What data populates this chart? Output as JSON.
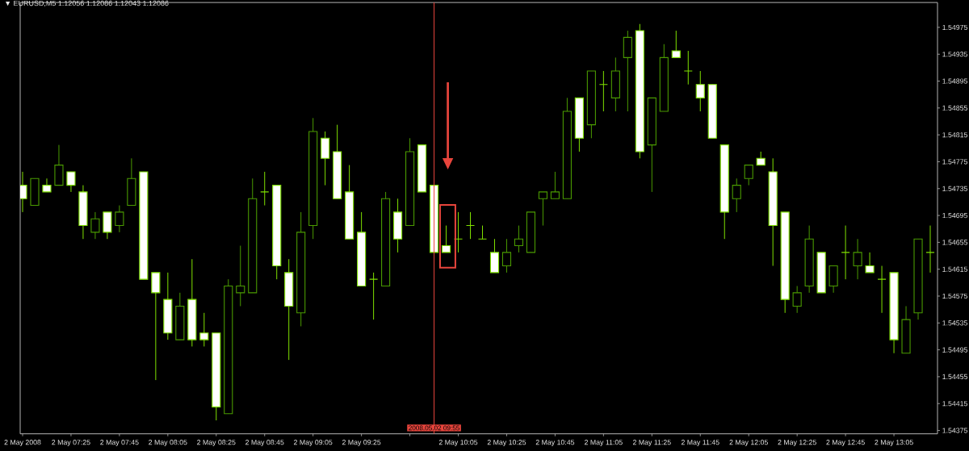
{
  "chart_data": {
    "type": "candlestick",
    "title": "▼ EURUSD,M5 1.12056 1.12086 1.12043 1.12086",
    "x": [
      "2008-05-02T07:05",
      "2008-05-02T07:10",
      "2008-05-02T07:15",
      "2008-05-02T07:20",
      "2008-05-02T07:25",
      "2008-05-02T07:30",
      "2008-05-02T07:35",
      "2008-05-02T07:40",
      "2008-05-02T07:45",
      "2008-05-02T07:50",
      "2008-05-02T07:55",
      "2008-05-02T08:00",
      "2008-05-02T08:05",
      "2008-05-02T08:10",
      "2008-05-02T08:15",
      "2008-05-02T08:20",
      "2008-05-02T08:25",
      "2008-05-02T08:30",
      "2008-05-02T08:35",
      "2008-05-02T08:40",
      "2008-05-02T08:45",
      "2008-05-02T08:50",
      "2008-05-02T08:55",
      "2008-05-02T09:00",
      "2008-05-02T09:05",
      "2008-05-02T09:10",
      "2008-05-02T09:15",
      "2008-05-02T09:20",
      "2008-05-02T09:25",
      "2008-05-02T09:30",
      "2008-05-02T09:35",
      "2008-05-02T09:40",
      "2008-05-02T09:45",
      "2008-05-02T09:50",
      "2008-05-02T09:55",
      "2008-05-02T10:00",
      "2008-05-02T10:05",
      "2008-05-02T10:10",
      "2008-05-02T10:15",
      "2008-05-02T10:20",
      "2008-05-02T10:25",
      "2008-05-02T10:30",
      "2008-05-02T10:35",
      "2008-05-02T10:40",
      "2008-05-02T10:45",
      "2008-05-02T10:50",
      "2008-05-02T10:55",
      "2008-05-02T11:00",
      "2008-05-02T11:05",
      "2008-05-02T11:10",
      "2008-05-02T11:15",
      "2008-05-02T11:20",
      "2008-05-02T11:25",
      "2008-05-02T11:30",
      "2008-05-02T11:35",
      "2008-05-02T11:40",
      "2008-05-02T11:45",
      "2008-05-02T11:50",
      "2008-05-02T11:55",
      "2008-05-02T12:00",
      "2008-05-02T12:05",
      "2008-05-02T12:10",
      "2008-05-02T12:15",
      "2008-05-02T12:20",
      "2008-05-02T12:25",
      "2008-05-02T12:30",
      "2008-05-02T12:35",
      "2008-05-02T12:40",
      "2008-05-02T12:45",
      "2008-05-02T12:50",
      "2008-05-02T12:55",
      "2008-05-02T13:00",
      "2008-05-02T13:05",
      "2008-05-02T13:10",
      "2008-05-02T13:15",
      "2008-05-02T13:20"
    ],
    "ohlc": [
      [
        1.5474,
        1.5476,
        1.547,
        1.5472
      ],
      [
        1.5471,
        1.5475,
        1.5471,
        1.5475
      ],
      [
        1.5474,
        1.5475,
        1.5473,
        1.5473
      ],
      [
        1.5474,
        1.548,
        1.5474,
        1.5477
      ],
      [
        1.5476,
        1.5476,
        1.5473,
        1.5474
      ],
      [
        1.5473,
        1.5474,
        1.5466,
        1.5468
      ],
      [
        1.5467,
        1.547,
        1.5466,
        1.5469
      ],
      [
        1.547,
        1.547,
        1.5466,
        1.5467
      ],
      [
        1.5468,
        1.5471,
        1.5467,
        1.547
      ],
      [
        1.5471,
        1.5478,
        1.5471,
        1.5475
      ],
      [
        1.5476,
        1.5476,
        1.546,
        1.546
      ],
      [
        1.5461,
        1.5461,
        1.5445,
        1.5458
      ],
      [
        1.5457,
        1.5461,
        1.5451,
        1.5452
      ],
      [
        1.5451,
        1.5458,
        1.5451,
        1.5456
      ],
      [
        1.5457,
        1.5463,
        1.545,
        1.5451
      ],
      [
        1.5452,
        1.5455,
        1.545,
        1.5451
      ],
      [
        1.5452,
        1.5452,
        1.5439,
        1.5441
      ],
      [
        1.544,
        1.546,
        1.544,
        1.5459
      ],
      [
        1.5458,
        1.5465,
        1.5456,
        1.5459
      ],
      [
        1.5458,
        1.5475,
        1.5458,
        1.5472
      ],
      [
        1.5473,
        1.5476,
        1.5471,
        1.5473
      ],
      [
        1.5474,
        1.5474,
        1.546,
        1.5462
      ],
      [
        1.5461,
        1.5463,
        1.5448,
        1.5456
      ],
      [
        1.5455,
        1.547,
        1.5453,
        1.5467
      ],
      [
        1.5468,
        1.5484,
        1.5466,
        1.5482
      ],
      [
        1.5481,
        1.5482,
        1.5474,
        1.5478
      ],
      [
        1.5479,
        1.5483,
        1.5472,
        1.5472
      ],
      [
        1.5473,
        1.5477,
        1.5466,
        1.5466
      ],
      [
        1.5467,
        1.547,
        1.5459,
        1.5459
      ],
      [
        1.546,
        1.5461,
        1.5454,
        1.546
      ],
      [
        1.5459,
        1.5473,
        1.5459,
        1.5472
      ],
      [
        1.547,
        1.5472,
        1.5464,
        1.5466
      ],
      [
        1.5468,
        1.5481,
        1.5468,
        1.5479
      ],
      [
        1.548,
        1.548,
        1.5473,
        1.5473
      ],
      [
        1.5474,
        1.5474,
        1.5464,
        1.5464
      ],
      [
        1.5465,
        1.5468,
        1.5464,
        1.5464
      ],
      [
        1.5466,
        1.547,
        1.5464,
        1.5466
      ],
      [
        1.5468,
        1.547,
        1.5466,
        1.5468
      ],
      [
        1.5466,
        1.5468,
        1.5466,
        1.5466
      ],
      [
        1.5464,
        1.5466,
        1.5461,
        1.5461
      ],
      [
        1.5462,
        1.5466,
        1.5461,
        1.5464
      ],
      [
        1.5465,
        1.5468,
        1.5464,
        1.5466
      ],
      [
        1.5464,
        1.547,
        1.5464,
        1.547
      ],
      [
        1.5472,
        1.5473,
        1.5468,
        1.5473
      ],
      [
        1.5472,
        1.5476,
        1.5472,
        1.5473
      ],
      [
        1.5472,
        1.5487,
        1.5472,
        1.5485
      ],
      [
        1.5487,
        1.5487,
        1.5479,
        1.5481
      ],
      [
        1.5483,
        1.5491,
        1.5481,
        1.5491
      ],
      [
        1.5489,
        1.5491,
        1.5485,
        1.5489
      ],
      [
        1.5487,
        1.5493,
        1.5485,
        1.5491
      ],
      [
        1.5493,
        1.5497,
        1.5485,
        1.5496
      ],
      [
        1.5497,
        1.5498,
        1.5478,
        1.5479
      ],
      [
        1.548,
        1.5487,
        1.5473,
        1.5487
      ],
      [
        1.5485,
        1.5495,
        1.5485,
        1.5493
      ],
      [
        1.5494,
        1.5497,
        1.5493,
        1.5493
      ],
      [
        1.5491,
        1.5494,
        1.5489,
        1.5491
      ],
      [
        1.5489,
        1.5491,
        1.5485,
        1.5487
      ],
      [
        1.5489,
        1.5489,
        1.5481,
        1.5481
      ],
      [
        1.548,
        1.548,
        1.5466,
        1.547
      ],
      [
        1.5472,
        1.5475,
        1.547,
        1.5474
      ],
      [
        1.5475,
        1.5477,
        1.5474,
        1.5477
      ],
      [
        1.5478,
        1.5479,
        1.5477,
        1.5477
      ],
      [
        1.5476,
        1.5478,
        1.5462,
        1.5468
      ],
      [
        1.547,
        1.547,
        1.5455,
        1.5457
      ],
      [
        1.5456,
        1.5459,
        1.5455,
        1.5458
      ],
      [
        1.5459,
        1.5468,
        1.5458,
        1.5466
      ],
      [
        1.5464,
        1.5464,
        1.5458,
        1.5458
      ],
      [
        1.5459,
        1.5462,
        1.5458,
        1.5462
      ],
      [
        1.5464,
        1.5468,
        1.546,
        1.5464
      ],
      [
        1.5462,
        1.5466,
        1.546,
        1.5464
      ],
      [
        1.5462,
        1.5464,
        1.5461,
        1.5461
      ],
      [
        1.546,
        1.5462,
        1.5455,
        1.546
      ],
      [
        1.5461,
        1.5461,
        1.5449,
        1.5451
      ],
      [
        1.5449,
        1.5456,
        1.5449,
        1.5454
      ],
      [
        1.5455,
        1.5466,
        1.5454,
        1.5466
      ],
      [
        1.5464,
        1.5468,
        1.5461,
        1.5464
      ]
    ],
    "colors": [
      "#ffffff",
      "#4a9a00",
      "#ffffff",
      "#4a9a00",
      "#ffffff",
      "#ffffff",
      "#4a9a00",
      "#ffffff",
      "#4a9a00",
      "#4a9a00",
      "#ffffff",
      "#ffffff",
      "#ffffff",
      "#4a9a00",
      "#ffffff",
      "#ffffff",
      "#ffffff",
      "#4a9a00",
      "#4a9a00",
      "#4a9a00",
      "#7fe000",
      "#ffffff",
      "#ffffff",
      "#4a9a00",
      "#4a9a00",
      "#ffffff",
      "#ffffff",
      "#ffffff",
      "#ffffff",
      "#7fe000",
      "#4a9a00",
      "#ffffff",
      "#4a9a00",
      "#ffffff",
      "#ffffff",
      "#ffffff",
      "#7fe000",
      "#7fe000",
      "#7fe000",
      "#ffffff",
      "#4a9a00",
      "#4a9a00",
      "#4a9a00",
      "#4a9a00",
      "#4a9a00",
      "#4a9a00",
      "#ffffff",
      "#4a9a00",
      "#7fe000",
      "#4a9a00",
      "#4a9a00",
      "#ffffff",
      "#4a9a00",
      "#4a9a00",
      "#ffffff",
      "#7fe000",
      "#ffffff",
      "#ffffff",
      "#ffffff",
      "#4a9a00",
      "#4a9a00",
      "#ffffff",
      "#ffffff",
      "#ffffff",
      "#4a9a00",
      "#4a9a00",
      "#ffffff",
      "#4a9a00",
      "#7fe000",
      "#4a9a00",
      "#ffffff",
      "#7fe000",
      "#ffffff",
      "#4a9a00",
      "#4a9a00",
      "#7fe000"
    ],
    "xlim": [
      "2008-05-02T07:04",
      "2008-05-02T13:23"
    ],
    "xticks": [
      {
        "value": "2008-05-02T07:05",
        "label": "2 May 2008"
      },
      {
        "value": "2008-05-02T07:25",
        "label": "2 May 07:25"
      },
      {
        "value": "2008-05-02T07:45",
        "label": "2 May 07:45"
      },
      {
        "value": "2008-05-02T08:05",
        "label": "2 May 08:05"
      },
      {
        "value": "2008-05-02T08:25",
        "label": "2 May 08:25"
      },
      {
        "value": "2008-05-02T08:45",
        "label": "2 May 08:45"
      },
      {
        "value": "2008-05-02T09:05",
        "label": "2 May 09:05"
      },
      {
        "value": "2008-05-02T09:25",
        "label": "2 May 09:25"
      },
      {
        "value": "2008-05-02T09:45",
        "label": null
      },
      {
        "value": "2008-05-02T10:05",
        "label": "2 May 10:05"
      },
      {
        "value": "2008-05-02T10:25",
        "label": "2 May 10:25"
      },
      {
        "value": "2008-05-02T10:45",
        "label": "2 May 10:45"
      },
      {
        "value": "2008-05-02T11:05",
        "label": "2 May 11:05"
      },
      {
        "value": "2008-05-02T11:25",
        "label": "2 May 11:25"
      },
      {
        "value": "2008-05-02T11:45",
        "label": "2 May 11:45"
      },
      {
        "value": "2008-05-02T12:05",
        "label": "2 May 12:05"
      },
      {
        "value": "2008-05-02T12:25",
        "label": "2 May 12:25"
      },
      {
        "value": "2008-05-02T12:45",
        "label": "2 May 12:45"
      },
      {
        "value": "2008-05-02T13:05",
        "label": "2 May 13:05"
      }
    ],
    "ylim": [
      1.5437,
      1.55012
    ],
    "yticks": [
      1.54375,
      1.54415,
      1.54455,
      1.54495,
      1.54535,
      1.54575,
      1.54615,
      1.54655,
      1.54695,
      1.54735,
      1.54775,
      1.54815,
      1.54855,
      1.54895,
      1.54935,
      1.54975
    ],
    "ref_lines": [
      {
        "axis": "x",
        "value": "2008-05-02T09:55",
        "label": "2008.05.02 09:55",
        "color": "#e8453c"
      }
    ]
  }
}
